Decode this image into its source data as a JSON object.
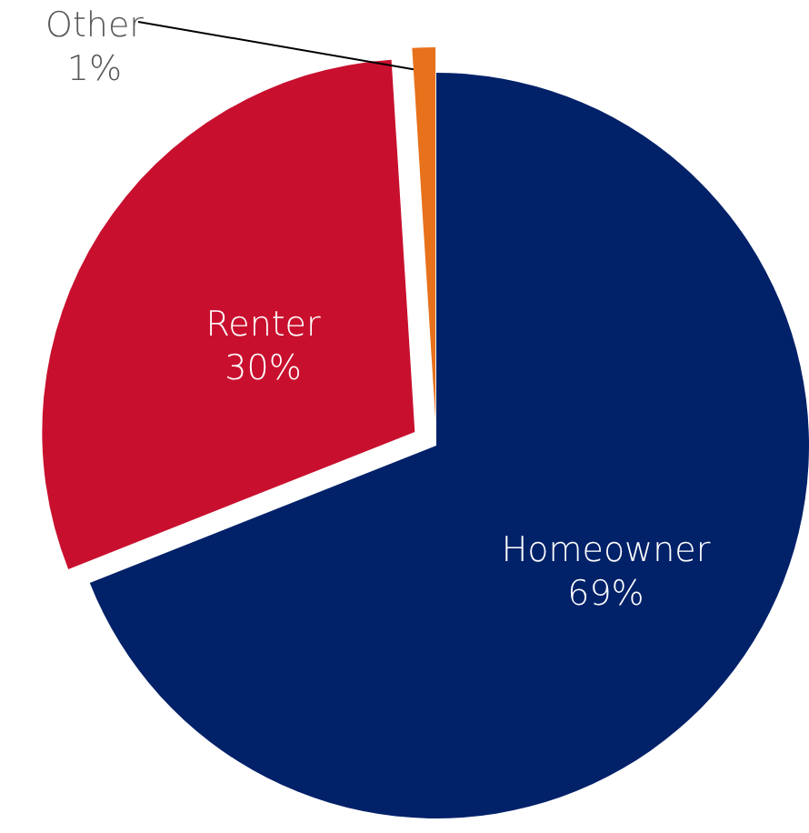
{
  "chart_data": {
    "type": "pie",
    "categories": [
      "Homeowner",
      "Renter",
      "Other"
    ],
    "values": [
      69,
      30,
      1
    ],
    "colors": [
      "#012169",
      "#c8102e",
      "#e8711c"
    ],
    "value_labels": [
      "69%",
      "30%",
      "1%"
    ]
  }
}
